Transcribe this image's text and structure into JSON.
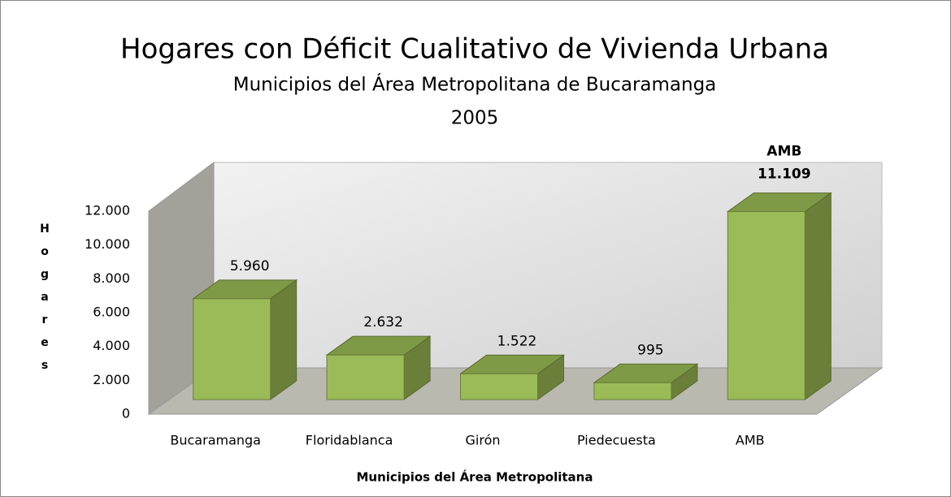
{
  "chart_data": {
    "type": "bar3d",
    "title": "Hogares con Déficit Cualitativo de Vivienda Urbana",
    "subtitle": "Municipios del Área Metropolitana de Bucaramanga",
    "year": "2005",
    "y_label": "Hogares",
    "x_label": "Municipios del Área Metropolitana",
    "categories": [
      "Bucaramanga",
      "Floridablanca",
      "Girón",
      "Piedecuesta",
      "AMB"
    ],
    "values": [
      5960,
      2632,
      1522,
      995,
      11109
    ],
    "value_labels": [
      "5.960",
      "2.632",
      "1.522",
      "995",
      "11.109"
    ],
    "color": "#9bbb59",
    "ylim": [
      0,
      12000
    ],
    "yticks": [
      0,
      {
        "value": 2000,
        "label": "2.000"
      },
      {
        "value": 4000,
        "label": "4.000"
      },
      {
        "value": 6000,
        "label": "6.000"
      },
      {
        "value": 8000,
        "label": "8.000"
      },
      {
        "value": 10000,
        "label": "10.000"
      },
      {
        "value": 12000,
        "label": "12.000"
      }
    ],
    "grid": false
  }
}
